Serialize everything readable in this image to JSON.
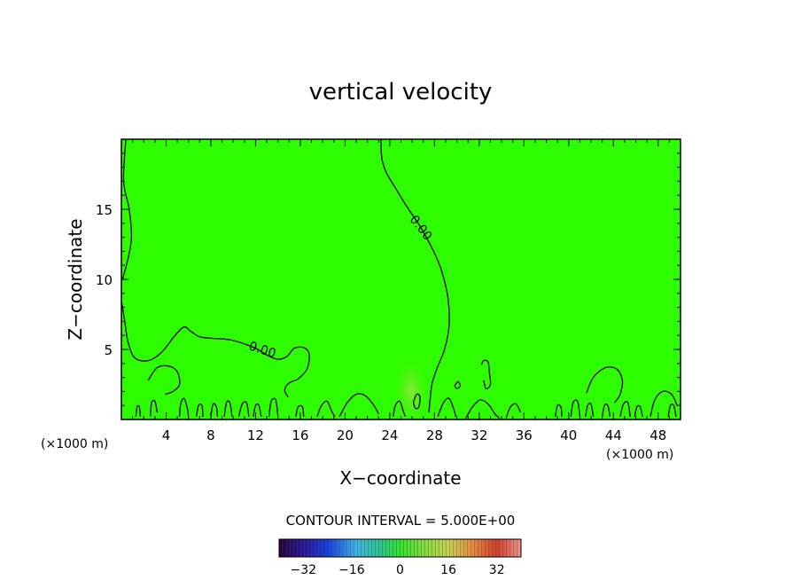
{
  "chart_data": {
    "type": "contour",
    "title": "vertical velocity",
    "xlabel": "X−coordinate",
    "ylabel": "Z−coordinate",
    "x_unit_left": "(×1000 m)",
    "x_unit_right": "(×1000 m)",
    "xlim": [
      0,
      50
    ],
    "ylim": [
      0,
      20
    ],
    "x_ticks": [
      4,
      8,
      12,
      16,
      20,
      24,
      28,
      32,
      36,
      40,
      44,
      48
    ],
    "x_tick_labels": [
      "4",
      "8",
      "12",
      "16",
      "20",
      "24",
      "28",
      "32",
      "36",
      "40",
      "44",
      "48"
    ],
    "y_ticks": [
      5,
      10,
      15
    ],
    "y_tick_labels": [
      "5",
      "10",
      "15"
    ],
    "contour_labels": [
      {
        "text": "0.00",
        "x": 26.5,
        "y": 13.5
      },
      {
        "text": "0.00",
        "x": 12.5,
        "y": 4.7
      }
    ],
    "contour_interval_label": "CONTOUR INTERVAL = 5.000E+00",
    "colorbar": {
      "range": [
        -40,
        40
      ],
      "ticks": [
        -32,
        -16,
        0,
        16,
        32
      ],
      "tick_labels": [
        "−32",
        "−16",
        "0",
        "16",
        "32"
      ]
    },
    "contour_lines": [
      {
        "level": 0,
        "points": [
          [
            0.4,
            20
          ],
          [
            0.2,
            17
          ],
          [
            0.7,
            15
          ],
          [
            0.9,
            13
          ],
          [
            0.6,
            11.5
          ],
          [
            0.1,
            10
          ]
        ]
      },
      {
        "level": 0,
        "points": [
          [
            0,
            8.5
          ],
          [
            0.3,
            7
          ],
          [
            0.6,
            5.5
          ],
          [
            1.2,
            4.4
          ],
          [
            2.4,
            4.2
          ],
          [
            3.6,
            4.8
          ],
          [
            4.8,
            6
          ],
          [
            5.6,
            6.6
          ],
          [
            6.2,
            6.3
          ],
          [
            7,
            5.9
          ],
          [
            8,
            5.8
          ],
          [
            9.6,
            5.7
          ],
          [
            11,
            5.4
          ],
          [
            12.2,
            5
          ],
          [
            13,
            4.6
          ],
          [
            14,
            4.3
          ],
          [
            14.8,
            4.5
          ],
          [
            15.5,
            5.1
          ],
          [
            16.4,
            5.1
          ],
          [
            16.8,
            4.6
          ],
          [
            16.6,
            3.6
          ],
          [
            15.8,
            2.9
          ],
          [
            15,
            2.6
          ],
          [
            14.6,
            2.1
          ],
          [
            14.9,
            1.6
          ]
        ]
      },
      {
        "level": 0,
        "points": [
          [
            23.2,
            20
          ],
          [
            23.3,
            18.6
          ],
          [
            23.7,
            17.6
          ],
          [
            24.6,
            16.4
          ],
          [
            25.6,
            15.1
          ],
          [
            26.7,
            13.8
          ],
          [
            27.8,
            12.2
          ],
          [
            28.6,
            10.7
          ],
          [
            29.2,
            8.7
          ],
          [
            29.3,
            6.7
          ],
          [
            28.9,
            5
          ],
          [
            28.3,
            3.8
          ],
          [
            27.8,
            2.6
          ],
          [
            27.6,
            1.4
          ],
          [
            27.5,
            0.5
          ]
        ]
      },
      {
        "level": 0,
        "points": [
          [
            2.4,
            2.8
          ],
          [
            3.2,
            3.7
          ],
          [
            4.3,
            3.8
          ],
          [
            5,
            3.4
          ],
          [
            5.2,
            2.5
          ],
          [
            4.6,
            2
          ],
          [
            3.9,
            1.8
          ]
        ]
      },
      {
        "level": 0,
        "points": [
          [
            41.6,
            1.9
          ],
          [
            42.2,
            3
          ],
          [
            43.3,
            3.7
          ],
          [
            44.3,
            3.6
          ],
          [
            44.8,
            2.8
          ],
          [
            44.6,
            1.8
          ],
          [
            44.1,
            1.2
          ]
        ]
      },
      {
        "level": 0,
        "points": [
          [
            32.2,
            3.9
          ],
          [
            32.4,
            4.2
          ],
          [
            32.8,
            4.1
          ],
          [
            32.9,
            3.4
          ],
          [
            33,
            2.5
          ],
          [
            32.6,
            2.2
          ],
          [
            32.4,
            2.8
          ]
        ]
      },
      {
        "level": 0,
        "points": [
          [
            26.1,
            1.2
          ],
          [
            26.4,
            1.8
          ],
          [
            26.7,
            1.6
          ],
          [
            26.6,
            0.9
          ],
          [
            26.3,
            0.8
          ],
          [
            26.1,
            1.2
          ]
        ]
      },
      {
        "level": 0,
        "points": [
          [
            29.8,
            2.4
          ],
          [
            30.1,
            2.7
          ],
          [
            30.3,
            2.4
          ],
          [
            30,
            2.2
          ],
          [
            29.8,
            2.4
          ]
        ]
      },
      {
        "level": 0,
        "points": [
          [
            19.5,
            0.2
          ],
          [
            20.2,
            1.2
          ],
          [
            21,
            1.8
          ],
          [
            21.8,
            1.7
          ],
          [
            22.5,
            1.1
          ],
          [
            23,
            0.4
          ]
        ]
      },
      {
        "level": 0,
        "points": [
          [
            30.8,
            0.1
          ],
          [
            31.4,
            0.9
          ],
          [
            32.1,
            1.4
          ],
          [
            32.8,
            1.1
          ],
          [
            33.4,
            0.4
          ],
          [
            33.8,
            0.1
          ]
        ]
      },
      {
        "level": 0,
        "points": [
          [
            47.3,
            0.2
          ],
          [
            47.7,
            1.4
          ],
          [
            48.4,
            2
          ],
          [
            49.2,
            1.8
          ],
          [
            49.7,
            1
          ]
        ]
      },
      {
        "level": 0,
        "points": [
          [
            34.4,
            0.1
          ],
          [
            34.8,
            0.9
          ],
          [
            35.3,
            1.1
          ],
          [
            35.7,
            0.5
          ]
        ]
      },
      {
        "level": 0,
        "points": [
          [
            17.5,
            0.2
          ],
          [
            17.9,
            1
          ],
          [
            18.4,
            1.3
          ],
          [
            18.8,
            0.6
          ],
          [
            19.1,
            0.2
          ]
        ]
      },
      {
        "level": 0,
        "points": [
          [
            24.3,
            0.2
          ],
          [
            24.5,
            1
          ],
          [
            24.9,
            1.3
          ],
          [
            25.2,
            0.6
          ],
          [
            25.4,
            0.2
          ]
        ]
      },
      {
        "level": 0,
        "points": [
          [
            28.3,
            0.2
          ],
          [
            28.8,
            1.2
          ],
          [
            29.3,
            1.5
          ],
          [
            29.7,
            0.8
          ],
          [
            29.9,
            0.2
          ]
        ]
      },
      {
        "level": 0,
        "points": [
          [
            1.3,
            0.2
          ],
          [
            1.4,
            0.9
          ],
          [
            1.6,
            0.9
          ],
          [
            1.7,
            0.2
          ]
        ]
      },
      {
        "level": 0,
        "points": [
          [
            2.6,
            0.2
          ],
          [
            2.7,
            1.2
          ],
          [
            3,
            1.3
          ],
          [
            3.2,
            0.5
          ]
        ]
      },
      {
        "level": 0,
        "points": [
          [
            5.2,
            0.2
          ],
          [
            5.3,
            1.1
          ],
          [
            5.6,
            1.5
          ],
          [
            5.9,
            0.8
          ],
          [
            6,
            0.2
          ]
        ]
      },
      {
        "level": 0,
        "points": [
          [
            6.7,
            0.2
          ],
          [
            6.9,
            1.0
          ],
          [
            7.2,
            1.0
          ],
          [
            7.3,
            0.2
          ]
        ]
      },
      {
        "level": 0,
        "points": [
          [
            8,
            0.2
          ],
          [
            8.2,
            1.1
          ],
          [
            8.5,
            0.9
          ],
          [
            8.6,
            0.2
          ]
        ]
      },
      {
        "level": 0,
        "points": [
          [
            9.2,
            0.2
          ],
          [
            9.4,
            1.2
          ],
          [
            9.7,
            1.2
          ],
          [
            9.9,
            0.2
          ]
        ]
      },
      {
        "level": 0,
        "points": [
          [
            10.5,
            0.2
          ],
          [
            10.8,
            1.1
          ],
          [
            11.2,
            1.2
          ],
          [
            11.4,
            0.2
          ]
        ]
      },
      {
        "level": 0,
        "points": [
          [
            11.8,
            0.2
          ],
          [
            12,
            1.0
          ],
          [
            12.3,
            1.0
          ],
          [
            12.5,
            0.2
          ]
        ]
      },
      {
        "level": 0,
        "points": [
          [
            13.2,
            0.2
          ],
          [
            13.4,
            1.3
          ],
          [
            13.8,
            1.4
          ],
          [
            14,
            0.2
          ]
        ]
      },
      {
        "level": 0,
        "points": [
          [
            15.6,
            0.2
          ],
          [
            15.8,
            0.9
          ],
          [
            16.2,
            0.9
          ],
          [
            16.3,
            0.2
          ]
        ]
      },
      {
        "level": 0,
        "points": [
          [
            38.8,
            0.2
          ],
          [
            39,
            1.0
          ],
          [
            39.3,
            0.9
          ],
          [
            39.4,
            0.2
          ]
        ]
      },
      {
        "level": 0,
        "points": [
          [
            40.2,
            0.2
          ],
          [
            40.4,
            1.2
          ],
          [
            40.8,
            1.3
          ],
          [
            41,
            0.2
          ]
        ]
      },
      {
        "level": 0,
        "points": [
          [
            41.5,
            0.2
          ],
          [
            41.7,
            1.0
          ],
          [
            42,
            1.1
          ],
          [
            42.2,
            0.2
          ]
        ]
      },
      {
        "level": 0,
        "points": [
          [
            43,
            0.2
          ],
          [
            43.2,
            1.0
          ],
          [
            43.5,
            1.0
          ],
          [
            43.7,
            0.2
          ]
        ]
      },
      {
        "level": 0,
        "points": [
          [
            44.6,
            0.2
          ],
          [
            44.9,
            1.1
          ],
          [
            45.3,
            1.2
          ],
          [
            45.5,
            0.2
          ]
        ]
      },
      {
        "level": 0,
        "points": [
          [
            45.9,
            0.2
          ],
          [
            46.1,
            0.9
          ],
          [
            46.4,
            0.9
          ],
          [
            46.6,
            0.2
          ]
        ]
      },
      {
        "level": 0,
        "points": [
          [
            48.9,
            0.2
          ],
          [
            49.1,
            1.0
          ],
          [
            49.4,
            1.0
          ],
          [
            49.6,
            0.2
          ]
        ]
      }
    ]
  }
}
